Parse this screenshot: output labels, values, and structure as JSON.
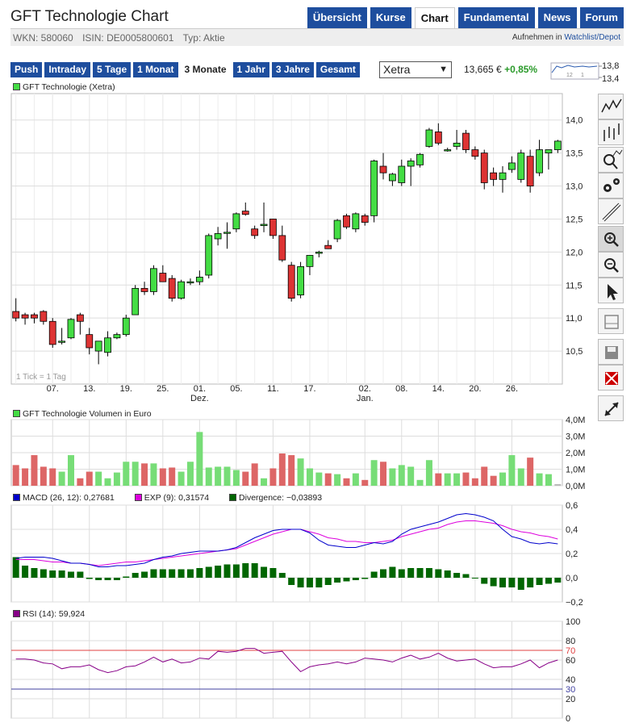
{
  "title": "GFT Technologie Chart",
  "nav": [
    "Übersicht",
    "Kurse",
    "Chart",
    "Fundamental",
    "News",
    "Forum"
  ],
  "nav_active": "Chart",
  "ids": {
    "wkn": "WKN: 580060",
    "isin": "ISIN: DE0005800601",
    "typ": "Typ: Aktie"
  },
  "watchlist": {
    "prefix": "Aufnehmen in ",
    "link": "Watchlist/Depot"
  },
  "ranges": [
    "Push",
    "Intraday",
    "5 Tage",
    "1 Monat",
    "3 Monate",
    "1 Jahr",
    "3 Jahre",
    "Gesamt"
  ],
  "range_active": "3 Monate",
  "exchange": "Xetra",
  "price": "13,665 €",
  "change": "+0,85%",
  "mini_chart": {
    "high": "13,8",
    "low": "13,4",
    "ticks": [
      "12",
      "1"
    ]
  },
  "colors": {
    "accent": "#1e4e9e",
    "up": "#44dd44",
    "down": "#dd3333",
    "macd": "#0000cc",
    "signal": "#dd00dd",
    "divergence": "#006600",
    "rsi": "#880088"
  },
  "main_legend": "GFT Technologie (Xetra)",
  "tick_note": "1 Tick = 1 Tag",
  "volume_legend": "GFT Technologie Volumen in Euro",
  "macd_legend": {
    "macd": "MACD (26, 12): 0,27681",
    "exp": "EXP (9): 0,31574",
    "div": "Divergence: −0,03893"
  },
  "rsi_legend": "RSI (14): 59,924",
  "toolbar": [
    "line-chart-icon",
    "ohlc-chart-icon",
    "indicator-icon",
    "settings-icon",
    "draw-icon",
    "zoom-in-icon",
    "zoom-out-icon",
    "pointer-icon",
    "print-icon",
    "save-icon",
    "delete-icon",
    "expand-icon"
  ],
  "chart_data": {
    "type": "candlestick",
    "price_axis": {
      "ticks": [
        "14,0",
        "13,5",
        "13,0",
        "12,5",
        "12,0",
        "11,5",
        "11,0",
        "10,5"
      ],
      "ylim": [
        10.0,
        14.4
      ]
    },
    "x_ticks": [
      {
        "label": "07.",
        "i": 4
      },
      {
        "label": "13.",
        "i": 8
      },
      {
        "label": "19.",
        "i": 12
      },
      {
        "label": "25.",
        "i": 16
      },
      {
        "label": "01.",
        "sub": "Dez.",
        "i": 20
      },
      {
        "label": "05.",
        "i": 24
      },
      {
        "label": "11.",
        "i": 28
      },
      {
        "label": "17.",
        "i": 32
      },
      {
        "label": "02.",
        "sub": "Jan.",
        "i": 38
      },
      {
        "label": "08.",
        "i": 42
      },
      {
        "label": "14.",
        "i": 46
      },
      {
        "label": "20.",
        "i": 50
      },
      {
        "label": "26.",
        "i": 54
      }
    ],
    "ohlc": [
      [
        11.1,
        11.3,
        10.95,
        11.0
      ],
      [
        11.05,
        11.08,
        10.9,
        11.0
      ],
      [
        11.05,
        11.08,
        10.92,
        11.0
      ],
      [
        11.1,
        11.12,
        10.9,
        10.95
      ],
      [
        10.95,
        11.0,
        10.55,
        10.6
      ],
      [
        10.65,
        10.85,
        10.6,
        10.65
      ],
      [
        10.7,
        11.0,
        10.68,
        10.98
      ],
      [
        11.05,
        11.08,
        10.75,
        10.95
      ],
      [
        10.75,
        10.85,
        10.45,
        10.55
      ],
      [
        10.5,
        10.65,
        10.3,
        10.65
      ],
      [
        10.48,
        10.8,
        10.42,
        10.7
      ],
      [
        10.7,
        10.78,
        10.68,
        10.75
      ],
      [
        10.75,
        11.05,
        10.72,
        11.0
      ],
      [
        11.05,
        11.5,
        11.05,
        11.45
      ],
      [
        11.45,
        11.55,
        11.35,
        11.4
      ],
      [
        11.4,
        11.8,
        11.35,
        11.75
      ],
      [
        11.68,
        11.8,
        11.55,
        11.55
      ],
      [
        11.6,
        11.65,
        11.25,
        11.3
      ],
      [
        11.3,
        11.58,
        11.28,
        11.55
      ],
      [
        11.55,
        11.6,
        11.5,
        11.55
      ],
      [
        11.55,
        11.72,
        11.5,
        11.62
      ],
      [
        11.65,
        12.28,
        11.6,
        12.25
      ],
      [
        12.2,
        12.38,
        12.1,
        12.28
      ],
      [
        12.3,
        12.45,
        12.05,
        12.3
      ],
      [
        12.35,
        12.6,
        12.3,
        12.58
      ],
      [
        12.62,
        12.75,
        12.55,
        12.57
      ],
      [
        12.35,
        12.4,
        12.2,
        12.25
      ],
      [
        12.4,
        12.75,
        12.3,
        12.42
      ],
      [
        12.5,
        12.5,
        12.2,
        12.25
      ],
      [
        12.25,
        12.4,
        11.85,
        11.88
      ],
      [
        11.8,
        11.85,
        11.25,
        11.3
      ],
      [
        11.35,
        11.85,
        11.3,
        11.78
      ],
      [
        11.78,
        11.95,
        11.65,
        11.95
      ],
      [
        11.98,
        12.02,
        11.92,
        12.0
      ],
      [
        12.1,
        12.18,
        12.05,
        12.05
      ],
      [
        12.2,
        12.5,
        12.15,
        12.48
      ],
      [
        12.55,
        12.58,
        12.35,
        12.38
      ],
      [
        12.35,
        12.6,
        12.3,
        12.58
      ],
      [
        12.55,
        12.58,
        12.4,
        12.45
      ],
      [
        12.55,
        13.4,
        12.45,
        13.38
      ],
      [
        13.3,
        13.5,
        13.1,
        13.2
      ],
      [
        13.08,
        13.2,
        13.0,
        13.18
      ],
      [
        13.05,
        13.4,
        13.0,
        13.3
      ],
      [
        13.3,
        13.42,
        13.0,
        13.38
      ],
      [
        13.32,
        13.5,
        13.28,
        13.48
      ],
      [
        13.6,
        13.88,
        13.58,
        13.85
      ],
      [
        13.82,
        13.95,
        13.62,
        13.65
      ],
      [
        13.55,
        13.58,
        13.52,
        13.55
      ],
      [
        13.6,
        13.85,
        13.55,
        13.65
      ],
      [
        13.8,
        13.85,
        13.5,
        13.55
      ],
      [
        13.55,
        13.6,
        13.4,
        13.45
      ],
      [
        13.5,
        13.55,
        12.95,
        13.05
      ],
      [
        13.2,
        13.28,
        13.0,
        13.1
      ],
      [
        13.1,
        13.3,
        12.9,
        13.2
      ],
      [
        13.25,
        13.45,
        13.2,
        13.35
      ],
      [
        13.1,
        13.55,
        13.05,
        13.5
      ],
      [
        13.45,
        13.55,
        12.9,
        13.0
      ],
      [
        13.2,
        13.7,
        13.15,
        13.55
      ],
      [
        13.5,
        13.55,
        13.25,
        13.55
      ],
      [
        13.55,
        13.7,
        13.5,
        13.68
      ]
    ],
    "volume_axis": {
      "ticks": [
        "4,0M",
        "3,0M",
        "2,0M",
        "1,0M",
        "0,0M"
      ],
      "ylim": [
        0,
        4.0
      ]
    },
    "volume_m": [
      1.25,
      1.05,
      1.85,
      1.15,
      1.05,
      0.85,
      1.85,
      0.45,
      0.85,
      0.85,
      0.45,
      0.8,
      1.45,
      1.45,
      1.35,
      1.35,
      1.05,
      1.1,
      0.85,
      1.45,
      3.25,
      1.1,
      1.15,
      1.15,
      0.95,
      0.85,
      1.35,
      0.45,
      1.05,
      1.95,
      1.85,
      1.65,
      1.05,
      0.8,
      0.75,
      0.7,
      0.45,
      0.75,
      0.35,
      1.55,
      1.45,
      1.05,
      1.25,
      1.15,
      0.35,
      1.55,
      0.75,
      0.75,
      0.75,
      0.8,
      0.45,
      1.15,
      0.6,
      0.8,
      1.85,
      1.05,
      1.7,
      0.75,
      0.7,
      0.1
    ],
    "macd_axis": {
      "ticks": [
        "0,6",
        "0,4",
        "0,2",
        "0,0",
        "−0,2"
      ],
      "ylim": [
        -0.2,
        0.6
      ]
    },
    "macd": [
      0.16,
      0.17,
      0.17,
      0.17,
      0.16,
      0.14,
      0.12,
      0.12,
      0.11,
      0.09,
      0.09,
      0.1,
      0.1,
      0.11,
      0.12,
      0.15,
      0.17,
      0.18,
      0.2,
      0.21,
      0.22,
      0.22,
      0.22,
      0.23,
      0.25,
      0.29,
      0.33,
      0.36,
      0.39,
      0.4,
      0.4,
      0.4,
      0.37,
      0.31,
      0.27,
      0.26,
      0.25,
      0.25,
      0.27,
      0.29,
      0.28,
      0.3,
      0.36,
      0.4,
      0.42,
      0.44,
      0.46,
      0.49,
      0.52,
      0.53,
      0.52,
      0.5,
      0.47,
      0.4,
      0.34,
      0.32,
      0.29,
      0.28,
      0.29,
      0.28
    ],
    "signal": [
      0.15,
      0.15,
      0.15,
      0.14,
      0.13,
      0.13,
      0.12,
      0.12,
      0.11,
      0.1,
      0.11,
      0.12,
      0.13,
      0.13,
      0.14,
      0.15,
      0.16,
      0.17,
      0.18,
      0.19,
      0.2,
      0.21,
      0.22,
      0.23,
      0.24,
      0.27,
      0.3,
      0.33,
      0.36,
      0.38,
      0.4,
      0.4,
      0.38,
      0.36,
      0.33,
      0.32,
      0.3,
      0.3,
      0.29,
      0.29,
      0.3,
      0.31,
      0.34,
      0.36,
      0.38,
      0.4,
      0.41,
      0.44,
      0.46,
      0.47,
      0.47,
      0.46,
      0.45,
      0.43,
      0.4,
      0.38,
      0.37,
      0.35,
      0.34,
      0.32
    ],
    "divergence": [
      0.17,
      0.1,
      0.08,
      0.07,
      0.06,
      0.06,
      0.05,
      0.05,
      -0.01,
      -0.02,
      -0.02,
      -0.02,
      0.01,
      0.04,
      0.05,
      0.07,
      0.07,
      0.07,
      0.07,
      0.07,
      0.08,
      0.09,
      0.1,
      0.11,
      0.11,
      0.12,
      0.12,
      0.09,
      0.08,
      0.04,
      -0.06,
      -0.08,
      -0.08,
      -0.08,
      -0.06,
      -0.04,
      -0.03,
      -0.02,
      -0.01,
      0.05,
      0.07,
      0.09,
      0.07,
      0.08,
      0.08,
      0.08,
      0.07,
      0.06,
      0.04,
      0.03,
      0.0,
      -0.05,
      -0.07,
      -0.08,
      -0.08,
      -0.1,
      -0.08,
      -0.06,
      -0.05,
      -0.04
    ],
    "rsi_axis": {
      "ticks": [
        "100",
        "80",
        "70",
        "60",
        "40",
        "30",
        "20",
        "0"
      ],
      "ylim": [
        0,
        100
      ]
    },
    "rsi": [
      61,
      61,
      60,
      57,
      56,
      51,
      53,
      53,
      55,
      50,
      47,
      49,
      53,
      54,
      58,
      63,
      58,
      61,
      57,
      58,
      62,
      61,
      69,
      68,
      69,
      72,
      72,
      67,
      68,
      69,
      58,
      48,
      53,
      55,
      56,
      58,
      56,
      58,
      62,
      61,
      60,
      58,
      62,
      65,
      61,
      63,
      67,
      62,
      59,
      60,
      61,
      56,
      52,
      53,
      53,
      56,
      60,
      52,
      57,
      60
    ],
    "rsi_lines": [
      70,
      30
    ]
  }
}
